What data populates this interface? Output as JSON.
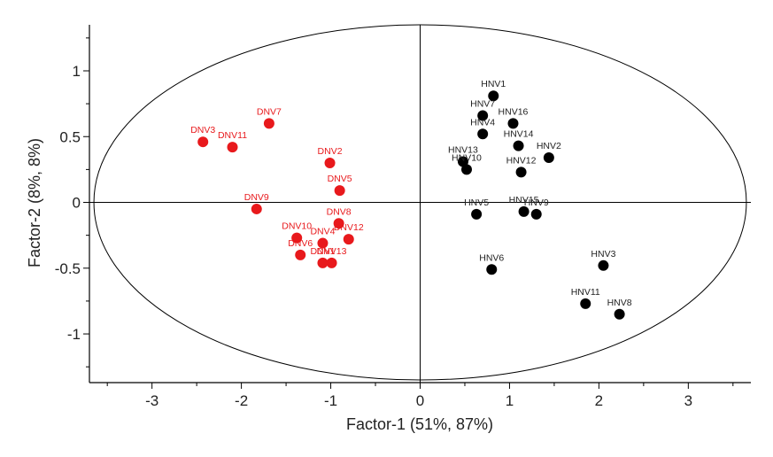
{
  "chart_data": {
    "type": "scatter",
    "title": "",
    "xlabel": "Factor-1 (51%, 87%)",
    "ylabel": "Factor-2 (8%, 8%)",
    "xlim": [
      -3.7,
      3.7
    ],
    "ylim": [
      -1.37,
      1.35
    ],
    "xticks": [
      -3,
      -2,
      -1,
      0,
      1,
      2,
      3
    ],
    "yticks": [
      -1,
      -0.5,
      0,
      0.5,
      1
    ],
    "xtick_labels": [
      "-3",
      "-2",
      "-1",
      "0",
      "1",
      "2",
      "3"
    ],
    "ytick_labels": [
      "-1",
      "-0.5",
      "0",
      "0.5",
      "1"
    ],
    "ellipse": {
      "rx": 3.65,
      "ry": 1.35
    },
    "series": [
      {
        "name": "DNV",
        "color": "#e8191c",
        "label_color": "#e8191c",
        "points": [
          {
            "label": "DNV7",
            "x": -1.69,
            "y": 0.6
          },
          {
            "label": "DNV3",
            "x": -2.43,
            "y": 0.46
          },
          {
            "label": "DNV11",
            "x": -2.1,
            "y": 0.42
          },
          {
            "label": "DNV2",
            "x": -1.01,
            "y": 0.3
          },
          {
            "label": "DNV5",
            "x": -0.9,
            "y": 0.09
          },
          {
            "label": "DNV9",
            "x": -1.83,
            "y": -0.05
          },
          {
            "label": "DNV8",
            "x": -0.91,
            "y": -0.16
          },
          {
            "label": "DNV10",
            "x": -1.38,
            "y": -0.27
          },
          {
            "label": "DNV12",
            "x": -0.8,
            "y": -0.28
          },
          {
            "label": "DNV4",
            "x": -1.09,
            "y": -0.31
          },
          {
            "label": "DNV6",
            "x": -1.34,
            "y": -0.4
          },
          {
            "label": "DNV13",
            "x": -0.99,
            "y": -0.46
          },
          {
            "label": "DNV1",
            "x": -1.09,
            "y": -0.46
          }
        ]
      },
      {
        "name": "HNV",
        "color": "#000000",
        "label_color": "#222222",
        "points": [
          {
            "label": "HNV1",
            "x": 0.82,
            "y": 0.81
          },
          {
            "label": "HNV7",
            "x": 0.7,
            "y": 0.66
          },
          {
            "label": "HNV16",
            "x": 1.04,
            "y": 0.6
          },
          {
            "label": "HNV4",
            "x": 0.7,
            "y": 0.52
          },
          {
            "label": "HNV14",
            "x": 1.1,
            "y": 0.43
          },
          {
            "label": "HNV2",
            "x": 1.44,
            "y": 0.34
          },
          {
            "label": "HNV13",
            "x": 0.48,
            "y": 0.31
          },
          {
            "label": "HNV10",
            "x": 0.52,
            "y": 0.25
          },
          {
            "label": "HNV12",
            "x": 1.13,
            "y": 0.23
          },
          {
            "label": "HNV5",
            "x": 0.63,
            "y": -0.09
          },
          {
            "label": "HNV15",
            "x": 1.16,
            "y": -0.07
          },
          {
            "label": "HNV9",
            "x": 1.3,
            "y": -0.09
          },
          {
            "label": "HNV6",
            "x": 0.8,
            "y": -0.51
          },
          {
            "label": "HNV3",
            "x": 2.05,
            "y": -0.48
          },
          {
            "label": "HNV11",
            "x": 1.85,
            "y": -0.77
          },
          {
            "label": "HNV8",
            "x": 2.23,
            "y": -0.85
          }
        ]
      }
    ]
  }
}
